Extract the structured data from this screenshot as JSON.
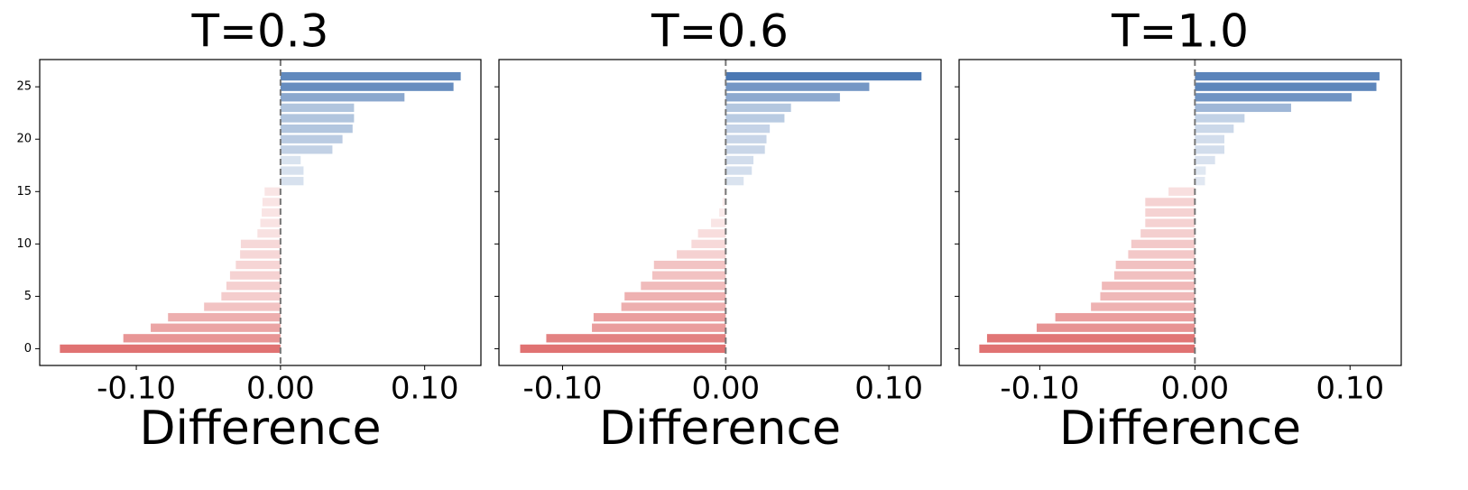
{
  "chart_data": [
    {
      "type": "barh",
      "title": "T=0.3",
      "x_label": "Difference",
      "y": [
        0,
        1,
        2,
        3,
        4,
        5,
        6,
        7,
        8,
        9,
        10,
        11,
        12,
        13,
        14,
        15,
        16,
        17,
        18,
        19,
        20,
        21,
        22,
        23,
        24,
        25,
        26
      ],
      "values": [
        -0.153,
        -0.109,
        -0.09,
        -0.078,
        -0.053,
        -0.041,
        -0.0375,
        -0.035,
        -0.031,
        -0.028,
        -0.0275,
        -0.016,
        -0.014,
        -0.013,
        -0.0125,
        -0.011,
        0.016,
        0.016,
        0.014,
        0.036,
        0.043,
        0.05,
        0.051,
        0.051,
        0.086,
        0.12,
        0.125
      ],
      "positive_color": "#4372b0",
      "negative_color": "#e07272",
      "xlim": [
        -0.167,
        0.139
      ],
      "ylim": [
        -1.6,
        27.6
      ],
      "xticks": [
        {
          "value": -0.1,
          "label": "-0.10"
        },
        {
          "value": 0,
          "label": "0.00"
        },
        {
          "value": 0.1,
          "label": "0.10"
        }
      ],
      "yticks": [
        0,
        5,
        10,
        15,
        20,
        25
      ],
      "show_ytick_labels": true
    },
    {
      "type": "barh",
      "title": "T=0.6",
      "x_label": "Difference",
      "y": [
        0,
        1,
        2,
        3,
        4,
        5,
        6,
        7,
        8,
        9,
        10,
        11,
        12,
        13,
        14,
        15,
        16,
        17,
        18,
        19,
        20,
        21,
        22,
        23,
        24,
        25,
        26
      ],
      "values": [
        -0.126,
        -0.11,
        -0.082,
        -0.081,
        -0.064,
        -0.062,
        -0.052,
        -0.045,
        -0.044,
        -0.03,
        -0.021,
        -0.017,
        -0.009,
        -0.004,
        -0.002,
        -0.001,
        0.011,
        0.016,
        0.017,
        0.024,
        0.025,
        0.027,
        0.036,
        0.04,
        0.07,
        0.088,
        0.12
      ],
      "positive_color": "#4372b0",
      "negative_color": "#e07272",
      "xlim": [
        -0.139,
        0.132
      ],
      "ylim": [
        -1.6,
        27.6
      ],
      "xticks": [
        {
          "value": -0.1,
          "label": "-0.10"
        },
        {
          "value": 0,
          "label": "0.00"
        },
        {
          "value": 0.1,
          "label": "0.10"
        }
      ],
      "yticks": [
        0,
        5,
        10,
        15,
        20,
        25
      ],
      "show_ytick_labels": false
    },
    {
      "type": "barh",
      "title": "T=1.0",
      "x_label": "Difference",
      "y": [
        0,
        1,
        2,
        3,
        4,
        5,
        6,
        7,
        8,
        9,
        10,
        11,
        12,
        13,
        14,
        15,
        16,
        17,
        18,
        19,
        20,
        21,
        22,
        23,
        24,
        25,
        26
      ],
      "values": [
        -0.139,
        -0.134,
        -0.102,
        -0.09,
        -0.067,
        -0.061,
        -0.06,
        -0.052,
        -0.051,
        -0.043,
        -0.041,
        -0.035,
        -0.032,
        -0.032,
        -0.032,
        -0.017,
        0.0065,
        0.007,
        0.013,
        0.019,
        0.019,
        0.025,
        0.032,
        0.062,
        0.101,
        0.117,
        0.119
      ],
      "positive_color": "#4372b0",
      "negative_color": "#e07272",
      "xlim": [
        -0.152,
        0.133
      ],
      "ylim": [
        -1.6,
        27.6
      ],
      "xticks": [
        {
          "value": -0.1,
          "label": "-0.10"
        },
        {
          "value": 0,
          "label": "0.00"
        },
        {
          "value": 0.1,
          "label": "0.10"
        }
      ],
      "yticks": [
        0,
        5,
        10,
        15,
        20,
        25
      ],
      "show_ytick_labels": false
    }
  ]
}
